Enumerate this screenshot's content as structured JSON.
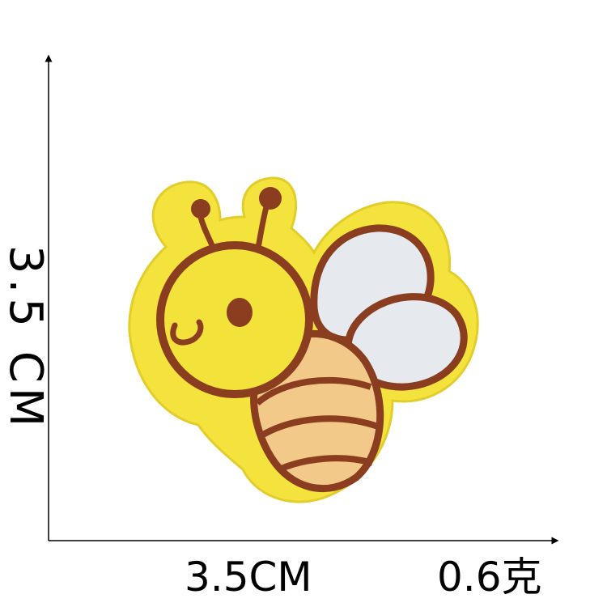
{
  "dimensions": {
    "height_label": "3.5 CM",
    "width_label": "3.5CM",
    "weight_label": "0.6克"
  },
  "colors": {
    "felt": "#f4e33c",
    "felt_shadow": "#e2cd2b",
    "outline": "#8a3d1f",
    "face": "#f2e23a",
    "body_stripe": "#f3c98a",
    "wing": "#e6eaee",
    "axis": "#000000"
  },
  "subject": {
    "icon": "bee-patch-icon"
  }
}
